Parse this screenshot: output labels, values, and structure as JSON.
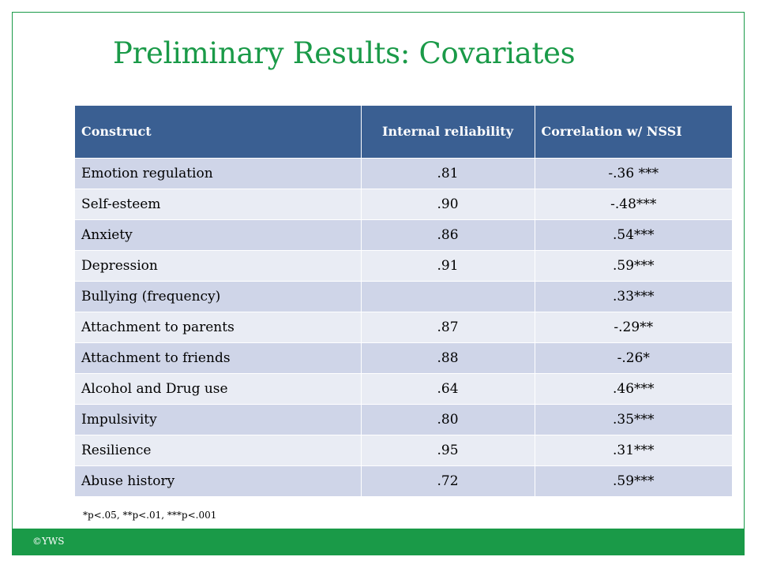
{
  "slide": {
    "title": "Preliminary Results: Covariates",
    "footnote": "*p<.05, **p<.01, ***p<.001",
    "copyright": "©YWS"
  },
  "table": {
    "headers": {
      "construct": "Construct",
      "reliability": "Internal reliability",
      "correlation": "Correlation w/ NSSI"
    },
    "rows": [
      {
        "construct": "Emotion regulation",
        "reliability": ".81",
        "correlation": "-.36 ***"
      },
      {
        "construct": "Self-esteem",
        "reliability": ".90",
        "correlation": "-.48***"
      },
      {
        "construct": "Anxiety",
        "reliability": ".86",
        "correlation": ".54***"
      },
      {
        "construct": "Depression",
        "reliability": ".91",
        "correlation": ".59***"
      },
      {
        "construct": "Bullying (frequency)",
        "reliability": "",
        "correlation": ".33***"
      },
      {
        "construct": "Attachment to parents",
        "reliability": ".87",
        "correlation": "-.29**"
      },
      {
        "construct": "Attachment to friends",
        "reliability": ".88",
        "correlation": "-.26*"
      },
      {
        "construct": "Alcohol and Drug use",
        "reliability": ".64",
        "correlation": ".46***"
      },
      {
        "construct": "Impulsivity",
        "reliability": ".80",
        "correlation": ".35***"
      },
      {
        "construct": "Resilience",
        "reliability": ".95",
        "correlation": ".31***"
      },
      {
        "construct": "Abuse history",
        "reliability": ".72",
        "correlation": ".59***"
      }
    ]
  },
  "colors": {
    "accent_green": "#1a9a48",
    "header_blue": "#3a5f92",
    "row_dark": "#cfd5e8",
    "row_light": "#e9ecf4"
  }
}
